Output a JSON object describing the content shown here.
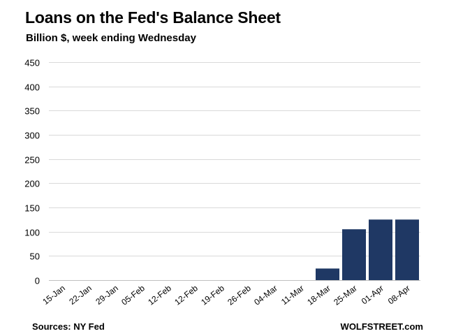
{
  "header": {
    "title": "Loans on the Fed's Balance Sheet",
    "subtitle": "Billion $, week ending Wednesday"
  },
  "footer": {
    "source": "Sources: NY Fed",
    "brand": "WOLFSTREET.com"
  },
  "chart_data": {
    "type": "bar",
    "title": "Loans on the Fed's Balance Sheet",
    "subtitle": "Billion $, week ending Wednesday",
    "xlabel": "",
    "ylabel": "",
    "categories": [
      "15-Jan",
      "22-Jan",
      "29-Jan",
      "05-Feb",
      "12-Feb",
      "12-Feb",
      "19-Feb",
      "26-Feb",
      "04-Mar",
      "11-Mar",
      "18-Mar",
      "25-Mar",
      "01-Apr",
      "08-Apr"
    ],
    "values": [
      0,
      0,
      0,
      0,
      0,
      0,
      0,
      0,
      0,
      0,
      24,
      105,
      125,
      125
    ],
    "ylim": [
      0,
      450
    ],
    "yticks": [
      0,
      50,
      100,
      150,
      200,
      250,
      300,
      350,
      400,
      450
    ],
    "grid": true,
    "legend": "none",
    "colors": {
      "bar": "#1f3864",
      "grid": "#d9d9d9"
    }
  }
}
